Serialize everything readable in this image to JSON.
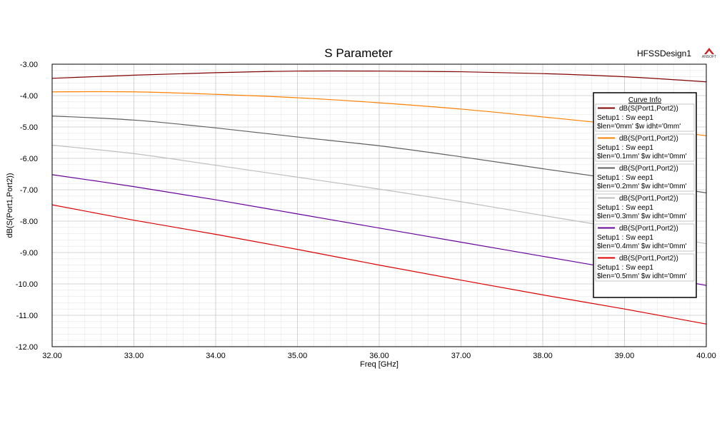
{
  "design_name": "HFSSDesign1",
  "logo_text": "ANSOFT",
  "colors": {
    "grid_major": "#c8c8c8",
    "grid_minor": "#e6e6e6",
    "plot_border": "#000000"
  },
  "legend": {
    "title": "Curve Info"
  },
  "chart_data": {
    "type": "line",
    "title": "S Parameter",
    "xlabel": "Freq [GHz]",
    "ylabel": "dB(S(Port1,Port2))",
    "xlim": [
      32,
      40
    ],
    "ylim": [
      -12,
      -3
    ],
    "xticks": [
      "32.00",
      "33.00",
      "34.00",
      "35.00",
      "36.00",
      "37.00",
      "38.00",
      "39.00",
      "40.00"
    ],
    "yticks": [
      "-3.00",
      "-4.00",
      "-5.00",
      "-6.00",
      "-7.00",
      "-8.00",
      "-9.00",
      "-10.00",
      "-11.00",
      "-12.00"
    ],
    "grid": true,
    "legend_position": "top-right",
    "x": [
      32,
      33,
      34,
      35,
      36,
      37,
      38,
      39,
      40
    ],
    "series": [
      {
        "name": "dB(S(Port1,Port2))",
        "line2": "Setup1 : Sw eep1",
        "line3": "$len='0mm' $w idht='0mm'",
        "color": "#800000",
        "values": [
          -3.45,
          -3.35,
          -3.27,
          -3.22,
          -3.22,
          -3.24,
          -3.3,
          -3.4,
          -3.56
        ]
      },
      {
        "name": "dB(S(Port1,Port2))",
        "line2": "Setup1 : Sw eep1",
        "line3": "$len='0.1mm' $w idht='0mm'",
        "color": "#ff8000",
        "values": [
          -3.88,
          -3.88,
          -3.96,
          -4.07,
          -4.23,
          -4.43,
          -4.68,
          -4.95,
          -5.28
        ]
      },
      {
        "name": "dB(S(Port1,Port2))",
        "line2": "Setup1 : Sw eep1",
        "line3": "$len='0.2mm' $w idht='0mm'",
        "color": "#606060",
        "values": [
          -4.65,
          -4.78,
          -5.03,
          -5.32,
          -5.6,
          -5.95,
          -6.33,
          -6.7,
          -7.1
        ]
      },
      {
        "name": "dB(S(Port1,Port2))",
        "line2": "Setup1 : Sw eep1",
        "line3": "$len='0.3mm' $w idht='0mm'",
        "color": "#bebebe",
        "values": [
          -5.58,
          -5.85,
          -6.22,
          -6.6,
          -6.98,
          -7.38,
          -7.82,
          -8.25,
          -8.72
        ]
      },
      {
        "name": "dB(S(Port1,Port2))",
        "line2": "Setup1 : Sw eep1",
        "line3": "$len='0.4mm' $w idht='0mm'",
        "color": "#660099",
        "values": [
          -6.52,
          -6.9,
          -7.32,
          -7.77,
          -8.22,
          -8.67,
          -9.12,
          -9.57,
          -10.05
        ]
      },
      {
        "name": "dB(S(Port1,Port2))",
        "line2": "Setup1 : Sw eep1",
        "line3": "$len='0.5mm' $w idht='0mm'",
        "color": "#dd0000",
        "values": [
          -7.48,
          -7.97,
          -8.42,
          -8.9,
          -9.4,
          -9.88,
          -10.35,
          -10.8,
          -11.28
        ]
      }
    ]
  }
}
